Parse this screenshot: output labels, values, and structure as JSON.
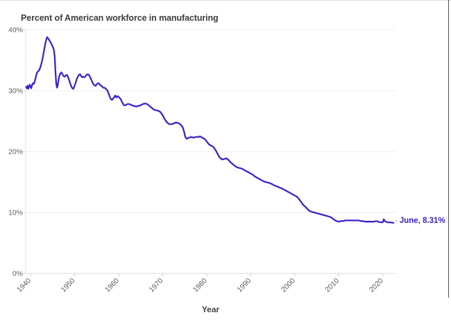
{
  "title": "Percent of American workforce in manufacturing",
  "annotation": {
    "dash": "-",
    "label": "June, 8.31%"
  },
  "colors": {
    "line": "#3e22cd",
    "annotation_text": "#3a20c8",
    "title_text": "#3d3d3d",
    "tick_text": "#5c5c5c",
    "gridline": "#ededed",
    "axis_line": "#d8d8d8",
    "y_axis_line": "#e5e5e5",
    "tick_mark": "#cccccc",
    "background": "#ffffff"
  },
  "chart_data": {
    "type": "line",
    "title": "Percent of American workforce in manufacturing",
    "xlabel": "Year",
    "ylabel": "",
    "x_tick_labels": [
      "1940",
      "1950",
      "1960",
      "1970",
      "1980",
      "1990",
      "2000",
      "2010",
      "2020"
    ],
    "x_ticks": [
      1940,
      1950,
      1960,
      1970,
      1980,
      1990,
      2000,
      2010,
      2020
    ],
    "y_tick_labels": [
      "0%",
      "10%",
      "20%",
      "30%",
      "40%"
    ],
    "y_ticks": [
      0,
      10,
      20,
      30,
      40
    ],
    "xlim": [
      1938.9,
      2022.9
    ],
    "ylim": [
      0,
      40
    ],
    "grid": true,
    "legend": "none",
    "end_label": "June, 8.31%",
    "end_value": 8.31,
    "series": [
      {
        "name": "Percent of American workforce in manufacturing",
        "points": [
          [
            1939.0,
            30.6
          ],
          [
            1939.17,
            30.4
          ],
          [
            1939.33,
            30.8
          ],
          [
            1939.5,
            30.3
          ],
          [
            1939.67,
            30.7
          ],
          [
            1939.83,
            31.0
          ],
          [
            1940.0,
            30.6
          ],
          [
            1940.17,
            30.4
          ],
          [
            1940.33,
            30.9
          ],
          [
            1940.5,
            31.2
          ],
          [
            1940.75,
            31.1
          ],
          [
            1941.0,
            31.6
          ],
          [
            1941.25,
            32.4
          ],
          [
            1941.5,
            33.0
          ],
          [
            1941.75,
            33.2
          ],
          [
            1942.0,
            33.4
          ],
          [
            1942.25,
            33.9
          ],
          [
            1942.5,
            34.5
          ],
          [
            1942.75,
            35.3
          ],
          [
            1943.0,
            36.3
          ],
          [
            1943.25,
            37.3
          ],
          [
            1943.5,
            38.2
          ],
          [
            1943.75,
            38.8
          ],
          [
            1944.0,
            38.6
          ],
          [
            1944.25,
            38.3
          ],
          [
            1944.5,
            38.0
          ],
          [
            1944.75,
            37.7
          ],
          [
            1945.0,
            37.3
          ],
          [
            1945.17,
            37.0
          ],
          [
            1945.33,
            36.6
          ],
          [
            1945.5,
            35.5
          ],
          [
            1945.67,
            33.0
          ],
          [
            1945.83,
            31.2
          ],
          [
            1946.0,
            30.5
          ],
          [
            1946.17,
            30.8
          ],
          [
            1946.33,
            31.6
          ],
          [
            1946.5,
            32.3
          ],
          [
            1946.75,
            32.8
          ],
          [
            1947.0,
            33.0
          ],
          [
            1947.25,
            32.7
          ],
          [
            1947.5,
            32.4
          ],
          [
            1947.75,
            32.3
          ],
          [
            1948.0,
            32.5
          ],
          [
            1948.25,
            32.6
          ],
          [
            1948.5,
            32.3
          ],
          [
            1948.75,
            31.8
          ],
          [
            1949.0,
            31.2
          ],
          [
            1949.25,
            30.7
          ],
          [
            1949.5,
            30.4
          ],
          [
            1949.75,
            30.3
          ],
          [
            1950.0,
            30.8
          ],
          [
            1950.25,
            31.3
          ],
          [
            1950.5,
            31.9
          ],
          [
            1950.75,
            32.3
          ],
          [
            1951.0,
            32.6
          ],
          [
            1951.25,
            32.7
          ],
          [
            1951.5,
            32.4
          ],
          [
            1951.75,
            32.2
          ],
          [
            1952.0,
            32.3
          ],
          [
            1952.25,
            32.2
          ],
          [
            1952.5,
            32.4
          ],
          [
            1952.75,
            32.6
          ],
          [
            1953.0,
            32.7
          ],
          [
            1953.25,
            32.6
          ],
          [
            1953.5,
            32.3
          ],
          [
            1953.75,
            31.9
          ],
          [
            1954.0,
            31.5
          ],
          [
            1954.25,
            31.1
          ],
          [
            1954.5,
            30.9
          ],
          [
            1954.75,
            30.8
          ],
          [
            1955.0,
            31.0
          ],
          [
            1955.25,
            31.2
          ],
          [
            1955.5,
            31.2
          ],
          [
            1955.75,
            31.0
          ],
          [
            1956.0,
            30.8
          ],
          [
            1956.25,
            30.7
          ],
          [
            1956.5,
            30.5
          ],
          [
            1956.75,
            30.5
          ],
          [
            1957.0,
            30.4
          ],
          [
            1957.25,
            30.2
          ],
          [
            1957.5,
            30.0
          ],
          [
            1957.75,
            29.5
          ],
          [
            1958.0,
            29.0
          ],
          [
            1958.25,
            28.6
          ],
          [
            1958.5,
            28.5
          ],
          [
            1958.75,
            28.7
          ],
          [
            1959.0,
            28.9
          ],
          [
            1959.25,
            29.2
          ],
          [
            1959.5,
            28.9
          ],
          [
            1959.75,
            29.1
          ],
          [
            1960.0,
            29.0
          ],
          [
            1960.25,
            28.8
          ],
          [
            1960.5,
            28.6
          ],
          [
            1960.75,
            28.2
          ],
          [
            1961.0,
            27.9
          ],
          [
            1961.25,
            27.6
          ],
          [
            1961.5,
            27.6
          ],
          [
            1961.75,
            27.7
          ],
          [
            1962.0,
            27.8
          ],
          [
            1962.5,
            27.8
          ],
          [
            1963.0,
            27.6
          ],
          [
            1963.5,
            27.5
          ],
          [
            1964.0,
            27.4
          ],
          [
            1964.5,
            27.5
          ],
          [
            1965.0,
            27.6
          ],
          [
            1965.5,
            27.8
          ],
          [
            1966.0,
            27.9
          ],
          [
            1966.5,
            27.8
          ],
          [
            1967.0,
            27.5
          ],
          [
            1967.5,
            27.2
          ],
          [
            1968.0,
            26.9
          ],
          [
            1968.5,
            26.8
          ],
          [
            1969.0,
            26.7
          ],
          [
            1969.5,
            26.5
          ],
          [
            1970.0,
            26.0
          ],
          [
            1970.5,
            25.3
          ],
          [
            1971.0,
            24.8
          ],
          [
            1971.5,
            24.5
          ],
          [
            1972.0,
            24.5
          ],
          [
            1972.5,
            24.6
          ],
          [
            1973.0,
            24.8
          ],
          [
            1973.5,
            24.7
          ],
          [
            1974.0,
            24.5
          ],
          [
            1974.5,
            24.1
          ],
          [
            1974.83,
            23.4
          ],
          [
            1975.17,
            22.4
          ],
          [
            1975.5,
            22.1
          ],
          [
            1976.0,
            22.3
          ],
          [
            1976.5,
            22.4
          ],
          [
            1977.0,
            22.3
          ],
          [
            1977.5,
            22.4
          ],
          [
            1978.0,
            22.4
          ],
          [
            1978.5,
            22.5
          ],
          [
            1979.0,
            22.3
          ],
          [
            1979.5,
            22.1
          ],
          [
            1980.0,
            21.7
          ],
          [
            1980.5,
            21.2
          ],
          [
            1981.0,
            21.0
          ],
          [
            1981.5,
            20.8
          ],
          [
            1982.0,
            20.3
          ],
          [
            1982.5,
            19.6
          ],
          [
            1983.0,
            19.0
          ],
          [
            1983.5,
            18.7
          ],
          [
            1984.0,
            18.8
          ],
          [
            1984.5,
            18.9
          ],
          [
            1985.0,
            18.6
          ],
          [
            1985.5,
            18.2
          ],
          [
            1986.0,
            17.9
          ],
          [
            1986.5,
            17.6
          ],
          [
            1987.0,
            17.4
          ],
          [
            1987.5,
            17.3
          ],
          [
            1988.0,
            17.2
          ],
          [
            1988.5,
            17.0
          ],
          [
            1989.0,
            16.8
          ],
          [
            1989.5,
            16.6
          ],
          [
            1990.0,
            16.4
          ],
          [
            1990.5,
            16.2
          ],
          [
            1991.0,
            15.9
          ],
          [
            1991.5,
            15.7
          ],
          [
            1992.0,
            15.5
          ],
          [
            1992.5,
            15.3
          ],
          [
            1993.0,
            15.1
          ],
          [
            1993.5,
            15.0
          ],
          [
            1994.0,
            14.9
          ],
          [
            1994.5,
            14.8
          ],
          [
            1995.0,
            14.6
          ],
          [
            1995.5,
            14.4
          ],
          [
            1996.0,
            14.3
          ],
          [
            1996.5,
            14.1
          ],
          [
            1997.0,
            14.0
          ],
          [
            1997.5,
            13.8
          ],
          [
            1998.0,
            13.6
          ],
          [
            1998.5,
            13.4
          ],
          [
            1999.0,
            13.2
          ],
          [
            1999.5,
            13.0
          ],
          [
            2000.0,
            12.8
          ],
          [
            2000.5,
            12.6
          ],
          [
            2001.0,
            12.2
          ],
          [
            2001.5,
            11.7
          ],
          [
            2002.0,
            11.2
          ],
          [
            2002.5,
            10.9
          ],
          [
            2003.0,
            10.5
          ],
          [
            2003.5,
            10.2
          ],
          [
            2004.0,
            10.1
          ],
          [
            2004.5,
            10.0
          ],
          [
            2005.0,
            9.9
          ],
          [
            2005.5,
            9.8
          ],
          [
            2006.0,
            9.7
          ],
          [
            2006.5,
            9.6
          ],
          [
            2007.0,
            9.5
          ],
          [
            2007.5,
            9.4
          ],
          [
            2008.0,
            9.3
          ],
          [
            2008.5,
            9.1
          ],
          [
            2009.0,
            8.8
          ],
          [
            2009.5,
            8.6
          ],
          [
            2010.0,
            8.5
          ],
          [
            2010.5,
            8.6
          ],
          [
            2011.0,
            8.6
          ],
          [
            2011.5,
            8.7
          ],
          [
            2012.0,
            8.7
          ],
          [
            2012.5,
            8.7
          ],
          [
            2013.0,
            8.7
          ],
          [
            2013.5,
            8.7
          ],
          [
            2014.0,
            8.7
          ],
          [
            2014.5,
            8.7
          ],
          [
            2015.0,
            8.6
          ],
          [
            2015.5,
            8.6
          ],
          [
            2016.0,
            8.5
          ],
          [
            2016.5,
            8.5
          ],
          [
            2017.0,
            8.5
          ],
          [
            2017.5,
            8.5
          ],
          [
            2018.0,
            8.5
          ],
          [
            2018.5,
            8.6
          ],
          [
            2019.0,
            8.5
          ],
          [
            2019.5,
            8.4
          ],
          [
            2020.0,
            8.4
          ],
          [
            2020.25,
            8.9
          ],
          [
            2020.42,
            8.6
          ],
          [
            2020.75,
            8.5
          ],
          [
            2021.0,
            8.4
          ],
          [
            2021.5,
            8.4
          ],
          [
            2022.0,
            8.35
          ],
          [
            2022.45,
            8.31
          ]
        ]
      }
    ]
  }
}
